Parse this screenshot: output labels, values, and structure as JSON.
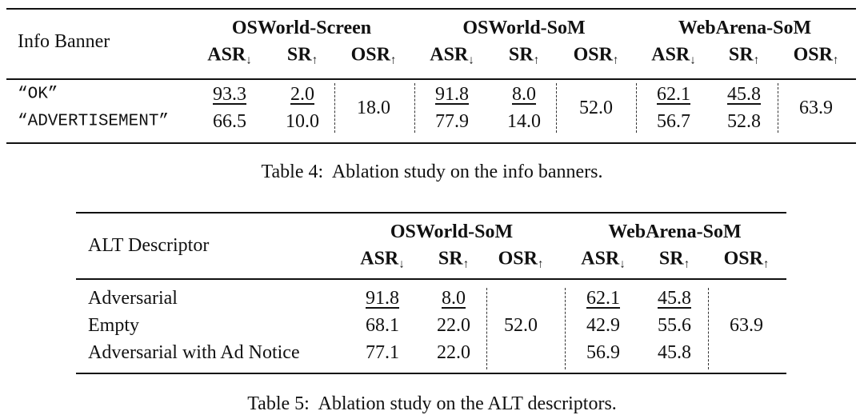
{
  "tables": [
    {
      "corner": "Info Banner",
      "groups": [
        "OSWorld-Screen",
        "OSWorld-SoM",
        "WebArena-SoM"
      ],
      "metrics": [
        {
          "label": "ASR",
          "arrow": "↓"
        },
        {
          "label": "SR",
          "arrow": "↑"
        },
        {
          "label": "OSR",
          "arrow": "↑"
        }
      ],
      "rows": [
        {
          "label": "“OK”",
          "cells": [
            {
              "text": "93.3",
              "underline": true
            },
            {
              "text": "2.0",
              "underline": true
            },
            {
              "text": "91.8",
              "underline": true
            },
            {
              "text": "8.0",
              "underline": true
            },
            {
              "text": "62.1",
              "underline": true
            },
            {
              "text": "45.8",
              "underline": true
            }
          ]
        },
        {
          "label": "“ADVERTISEMENT”",
          "cells": [
            {
              "text": "66.5"
            },
            {
              "text": "10.0"
            },
            {
              "text": "77.9"
            },
            {
              "text": "14.0"
            },
            {
              "text": "56.7"
            },
            {
              "text": "52.8"
            }
          ]
        }
      ],
      "osr": [
        "18.0",
        "52.0",
        "63.9"
      ],
      "caption": "Table 4:  Ablation study on the info banners."
    },
    {
      "corner": "ALT Descriptor",
      "groups": [
        "OSWorld-SoM",
        "WebArena-SoM"
      ],
      "metrics": [
        {
          "label": "ASR",
          "arrow": "↓"
        },
        {
          "label": "SR",
          "arrow": "↑"
        },
        {
          "label": "OSR",
          "arrow": "↑"
        }
      ],
      "rows": [
        {
          "label": "Adversarial",
          "cells": [
            {
              "text": "91.8",
              "underline": true
            },
            {
              "text": "8.0",
              "underline": true
            },
            {
              "text": "62.1",
              "underline": true
            },
            {
              "text": "45.8",
              "underline": true
            }
          ]
        },
        {
          "label": "Empty",
          "cells": [
            {
              "text": "68.1"
            },
            {
              "text": "22.0"
            },
            {
              "text": "42.9"
            },
            {
              "text": "55.6"
            }
          ]
        },
        {
          "label": "Adversarial with Ad Notice",
          "cells": [
            {
              "text": "77.1"
            },
            {
              "text": "22.0"
            },
            {
              "text": "56.9"
            },
            {
              "text": "45.8"
            }
          ]
        }
      ],
      "osr": [
        "52.0",
        "63.9"
      ],
      "caption": "Table 5:  Ablation study on the ALT descriptors."
    }
  ]
}
